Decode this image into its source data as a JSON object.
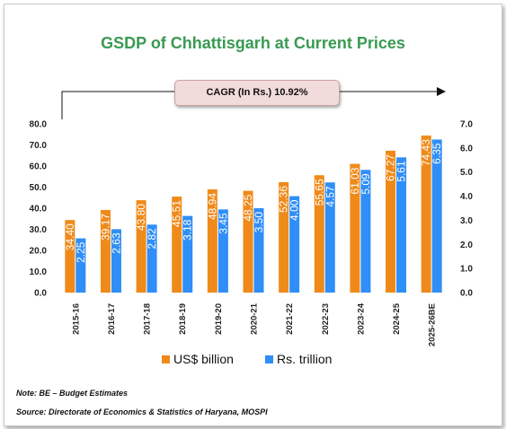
{
  "chart_data": {
    "type": "bar",
    "title": "GSDP of Chhattisgarh at Current Prices",
    "annotation": "CAGR (In Rs.) 10.92%",
    "categories": [
      "2015-16",
      "2016-17",
      "2017-18",
      "2018-19",
      "2019-20",
      "2020-21",
      "2021-22",
      "2022-23",
      "2023-24",
      "2024-25",
      "2025-26BE"
    ],
    "series": [
      {
        "name": "US$ billion",
        "axis": "left",
        "color": "#ef8a1a",
        "values": [
          34.4,
          39.17,
          43.8,
          45.51,
          48.94,
          48.25,
          52.36,
          55.65,
          61.03,
          67.27,
          74.43
        ],
        "labels": [
          "34.40",
          "39.17",
          "43.80",
          "45.51",
          "48.94",
          "48.25",
          "52.36",
          "55.65",
          "61.03",
          "67.27",
          "74.43"
        ]
      },
      {
        "name": "Rs. trillion",
        "axis": "right",
        "color": "#2f8ef7",
        "values": [
          2.25,
          2.63,
          2.82,
          3.18,
          3.45,
          3.5,
          4.0,
          4.57,
          5.09,
          5.61,
          6.35
        ],
        "labels": [
          "2.25",
          "2.63",
          "2.82",
          "3.18",
          "3.45",
          "3.50",
          "4.00",
          "4.57",
          "5.09",
          "5.61",
          "6.35"
        ]
      }
    ],
    "ylim_left": [
      0,
      80
    ],
    "yticks_left": [
      "0.0",
      "10.0",
      "20.0",
      "30.0",
      "40.0",
      "50.0",
      "60.0",
      "70.0",
      "80.0"
    ],
    "ylim_right": [
      0,
      7
    ],
    "yticks_right": [
      "0.0",
      "1.0",
      "2.0",
      "3.0",
      "4.0",
      "5.0",
      "6.0",
      "7.0"
    ],
    "grid": false,
    "legend_position": "bottom"
  },
  "notes": {
    "note": "Note: BE – Budget Estimates",
    "source": "Source: Directorate of Economics & Statistics of Haryana, MOSPI"
  }
}
